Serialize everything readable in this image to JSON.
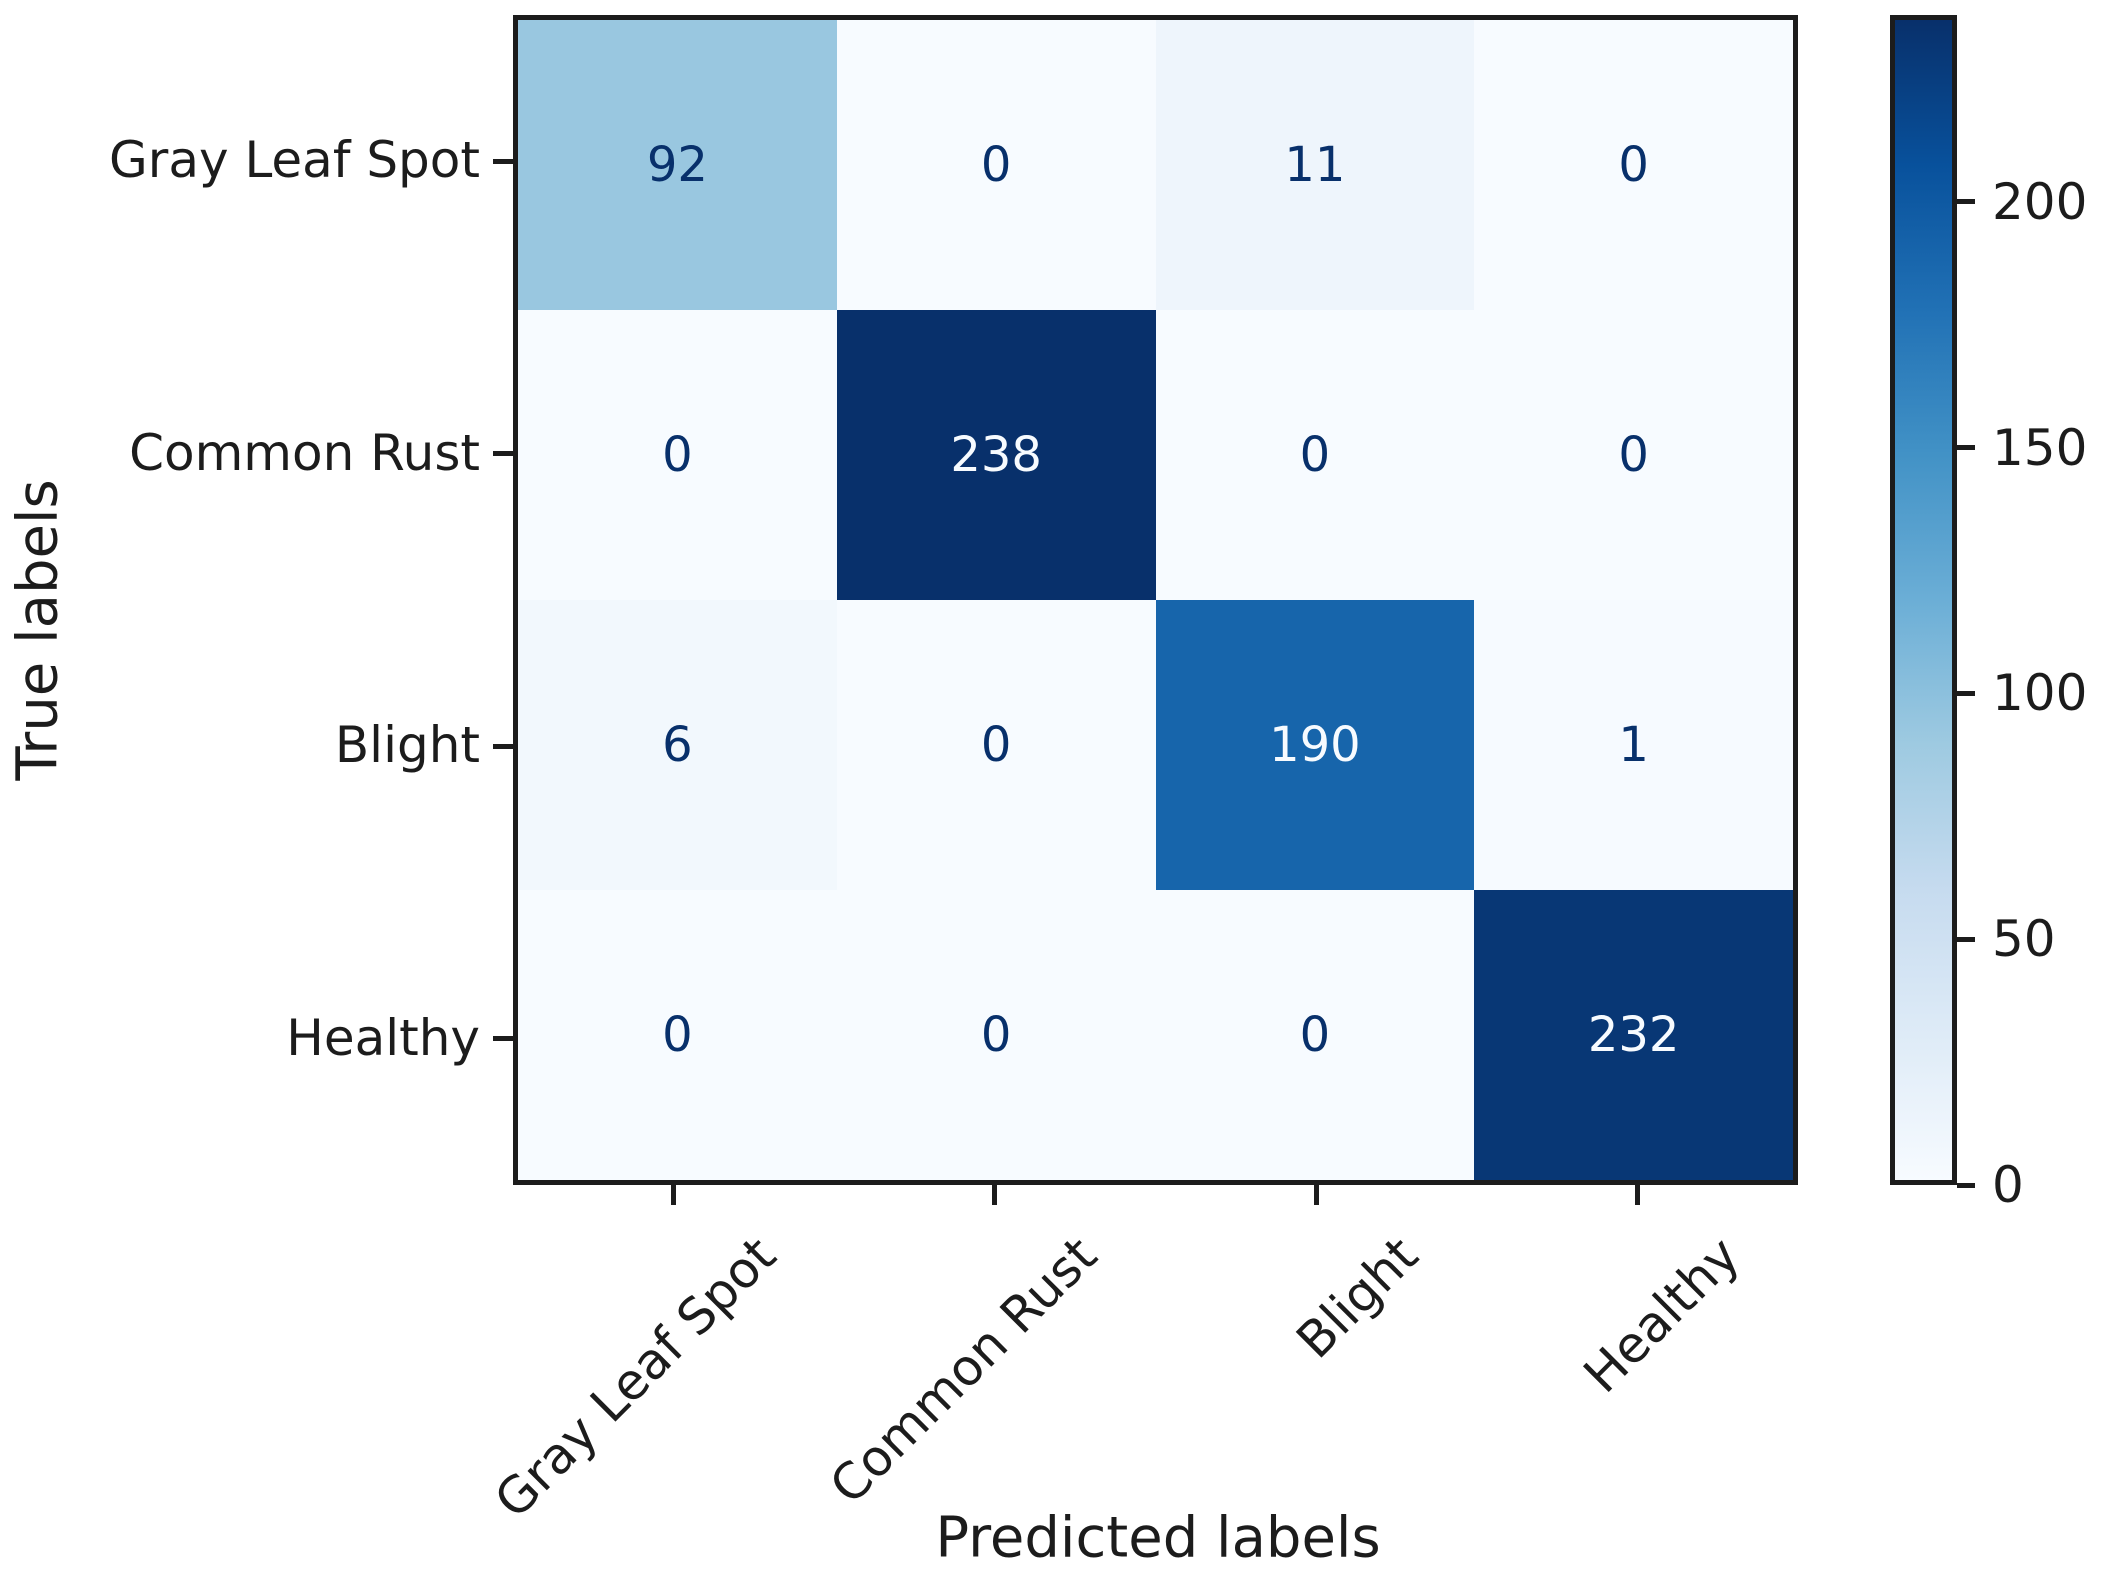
{
  "figure": {
    "background": "#ffffff",
    "axis_color": "#1c1c1c"
  },
  "chart_data": {
    "type": "heatmap",
    "title": "",
    "xlabel": "Predicted labels",
    "ylabel": "True labels",
    "x_categories": [
      "Gray Leaf Spot",
      "Common Rust",
      "Blight",
      "Healthy"
    ],
    "y_categories": [
      "Gray Leaf Spot",
      "Common Rust",
      "Blight",
      "Healthy"
    ],
    "matrix": [
      [
        92,
        0,
        11,
        0
      ],
      [
        0,
        238,
        0,
        0
      ],
      [
        6,
        0,
        190,
        1
      ],
      [
        0,
        0,
        0,
        232
      ]
    ],
    "vmin": 0,
    "vmax": 238,
    "colormap": "Blues",
    "colormap_stops": [
      [
        0.0,
        "#f7fbff"
      ],
      [
        0.125,
        "#deebf7"
      ],
      [
        0.25,
        "#c6dbef"
      ],
      [
        0.375,
        "#9ecae1"
      ],
      [
        0.5,
        "#6baed6"
      ],
      [
        0.625,
        "#4292c6"
      ],
      [
        0.75,
        "#2171b5"
      ],
      [
        0.875,
        "#08519c"
      ],
      [
        1.0,
        "#08306b"
      ]
    ],
    "annotation_text_dark": "#08306b",
    "annotation_text_light": "#f7fbff",
    "colorbar_ticks": [
      0,
      50,
      100,
      150,
      200
    ],
    "colorbar_position": "right",
    "grid": false
  }
}
